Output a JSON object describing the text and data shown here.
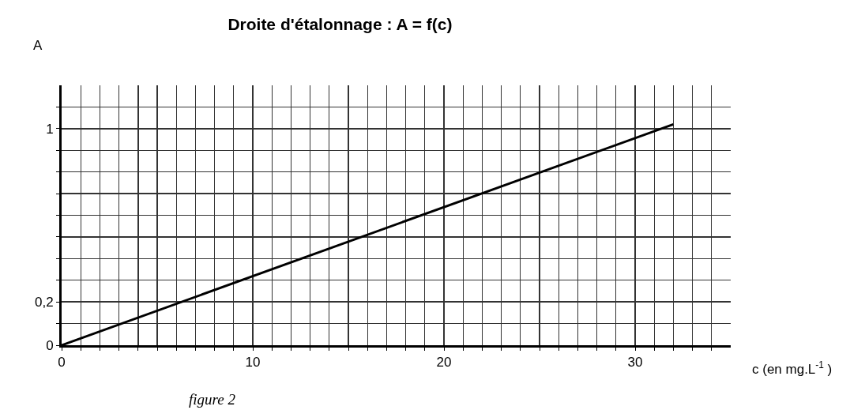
{
  "chart_data": {
    "type": "line",
    "title": "Droite d'étalonnage : A = f(c)",
    "xlabel": "c (en mg.L$^{-1}$ )",
    "ylabel": "A",
    "x": [
      0,
      32
    ],
    "series": [
      {
        "color": "#000000",
        "values": [
          0,
          1.02
        ]
      }
    ],
    "xlim": [
      0,
      35
    ],
    "ylim": [
      0,
      1.2
    ],
    "xticks": [
      0,
      {
        "value": 1,
        "label": null
      },
      {
        "value": 2,
        "label": null
      },
      {
        "value": 3,
        "label": null
      },
      {
        "value": 4,
        "label": null
      },
      {
        "value": 5,
        "label": null
      },
      {
        "value": 6,
        "label": null
      },
      {
        "value": 7,
        "label": null
      },
      {
        "value": 8,
        "label": null
      },
      {
        "value": 9,
        "label": null
      },
      10,
      {
        "value": 11,
        "label": null
      },
      {
        "value": 12,
        "label": null
      },
      {
        "value": 13,
        "label": null
      },
      {
        "value": 14,
        "label": null
      },
      {
        "value": 15,
        "label": null
      },
      {
        "value": 16,
        "label": null
      },
      {
        "value": 17,
        "label": null
      },
      {
        "value": 18,
        "label": null
      },
      {
        "value": 19,
        "label": null
      },
      20,
      {
        "value": 21,
        "label": null
      },
      {
        "value": 22,
        "label": null
      },
      {
        "value": 23,
        "label": null
      },
      {
        "value": 24,
        "label": null
      },
      {
        "value": 25,
        "label": null
      },
      {
        "value": 26,
        "label": null
      },
      {
        "value": 27,
        "label": null
      },
      {
        "value": 28,
        "label": null
      },
      {
        "value": 29,
        "label": null
      },
      30,
      {
        "value": 31,
        "label": null
      },
      {
        "value": 32,
        "label": null
      },
      {
        "value": 33,
        "label": null
      },
      {
        "value": 34,
        "label": null
      }
    ],
    "yticks": [
      0,
      {
        "value": 0.1,
        "label": null
      },
      {
        "value": 0.2,
        "label": "0,2"
      },
      {
        "value": 0.3,
        "label": null
      },
      {
        "value": 0.4,
        "label": null
      },
      {
        "value": 0.5,
        "label": null
      },
      {
        "value": 0.6,
        "label": null
      },
      {
        "value": 0.7,
        "label": null
      },
      {
        "value": 0.8,
        "label": null
      },
      {
        "value": 0.9,
        "label": null
      },
      1,
      {
        "value": 1.1,
        "label": null
      }
    ],
    "grid": true,
    "marker": "none",
    "line_style": "solid",
    "legend": false,
    "annotations": [
      "figure 2"
    ]
  }
}
